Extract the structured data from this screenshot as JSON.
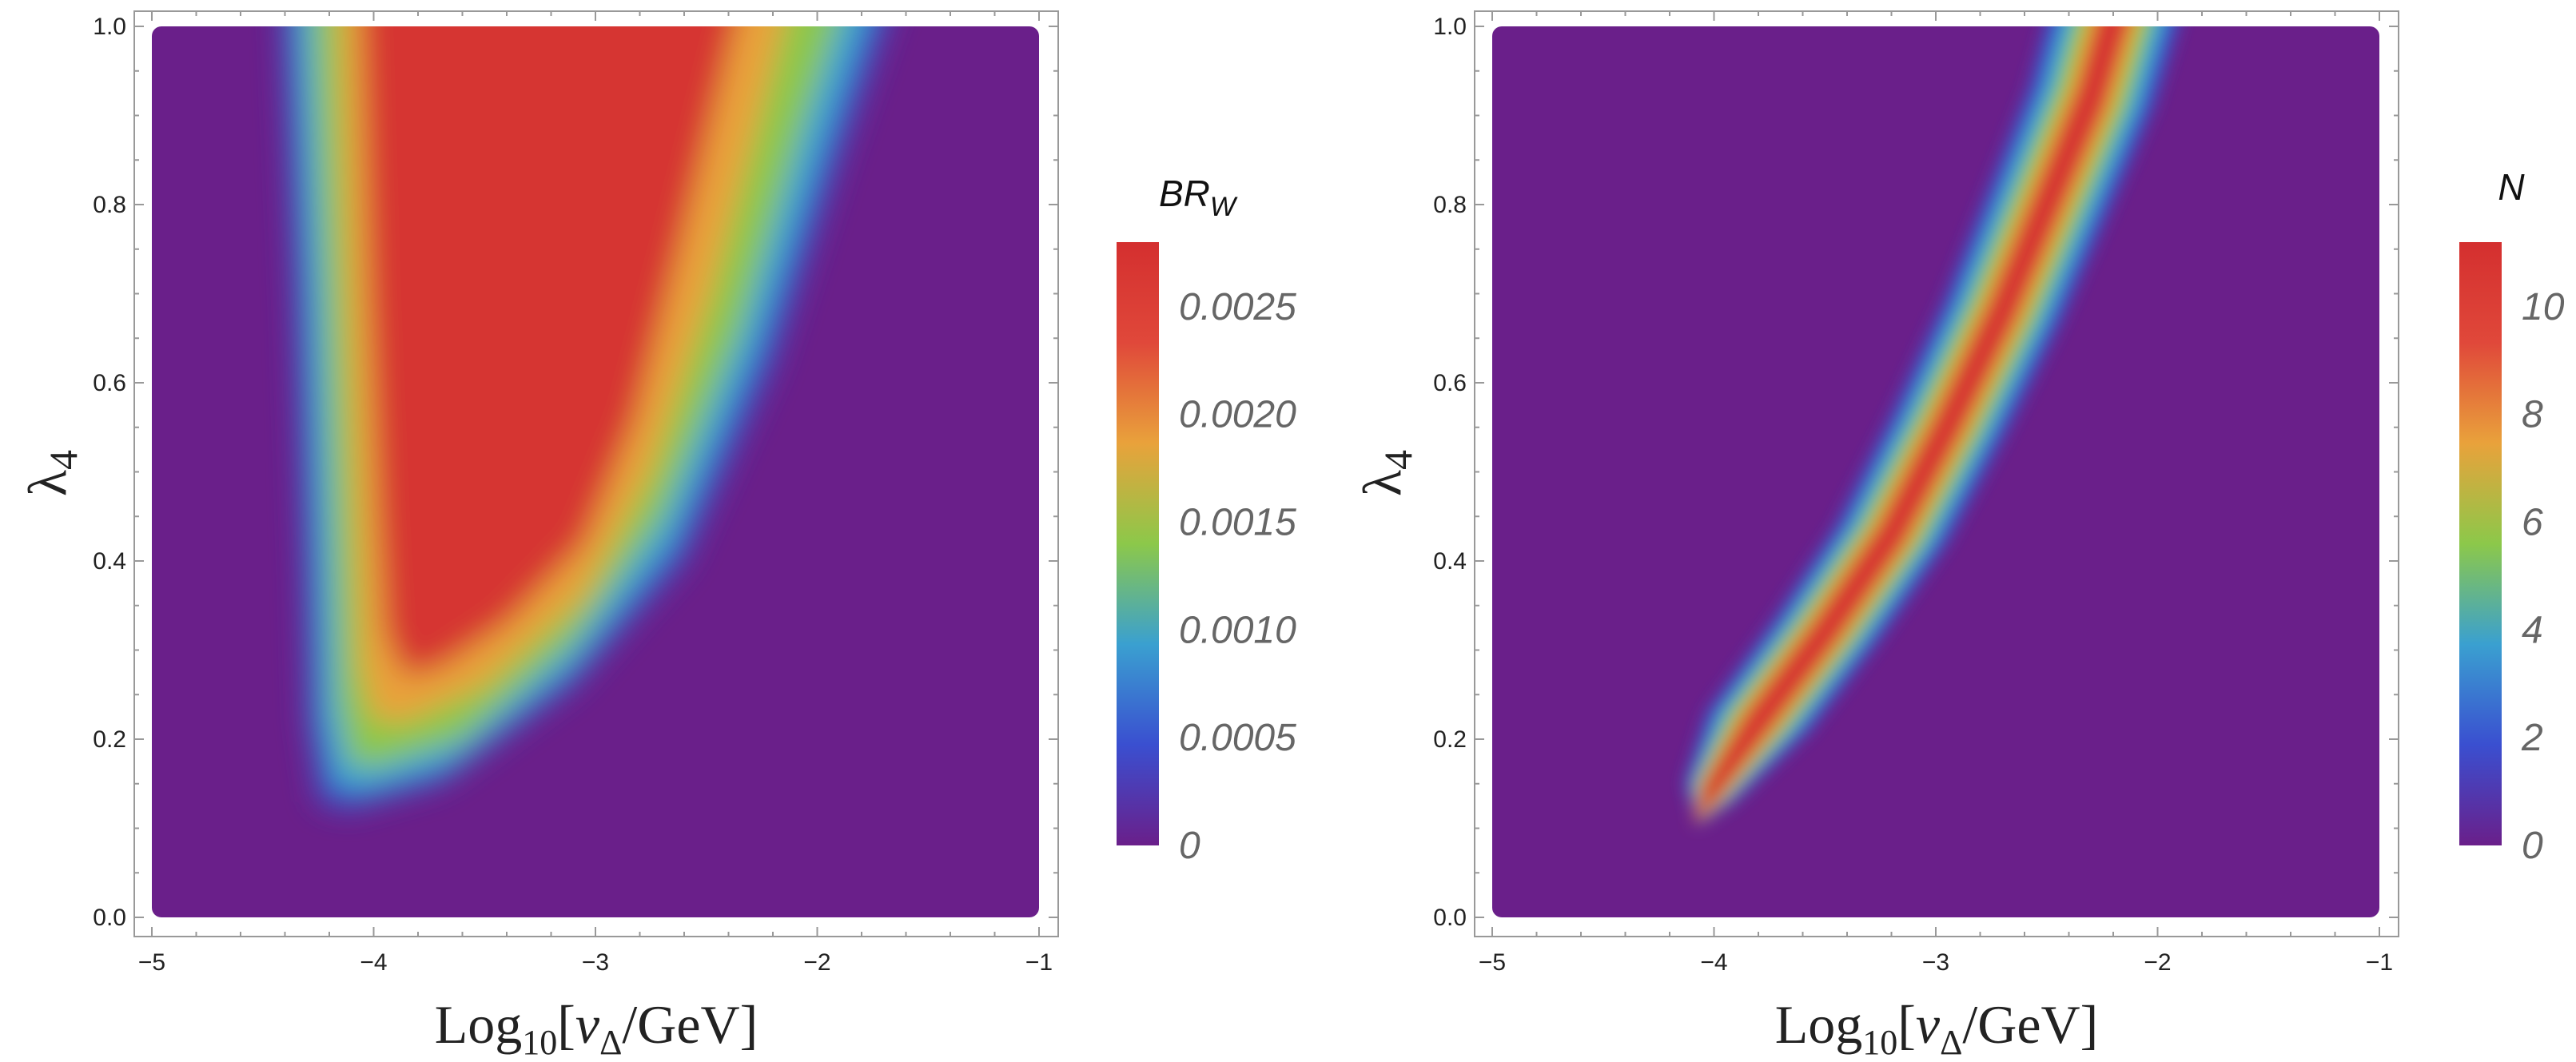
{
  "chart_data": [
    {
      "type": "heatmap",
      "title": "",
      "xlabel_main": "Log",
      "xlabel_sub": "10",
      "xlabel_bracket_open": "[",
      "xlabel_var": "v",
      "xlabel_var_sub": "Δ",
      "xlabel_unit": "/GeV]",
      "ylabel_main": "λ",
      "ylabel_sub": "4",
      "xlim": [
        -5.0,
        -1.0
      ],
      "ylim": [
        0.0,
        1.0
      ],
      "x_ticks": [
        "−5",
        "−4",
        "−3",
        "−2",
        "−1"
      ],
      "y_ticks": [
        "0.0",
        "0.2",
        "0.4",
        "0.6",
        "0.8",
        "1.0"
      ],
      "colorbar": {
        "title_main": "BR",
        "title_sub": "W",
        "range": [
          0.0,
          0.0028
        ],
        "ticks": [
          "0",
          "0.0005",
          "0.0010",
          "0.0015",
          "0.0020",
          "0.0025"
        ],
        "tick_values": [
          0.0,
          0.0005,
          0.001,
          0.0015,
          0.002,
          0.0025
        ],
        "colormap": [
          "#6a1f8a",
          "#3a4fd0",
          "#3aa0d0",
          "#8cc84a",
          "#e9a23b",
          "#e0483a",
          "#d42f2f"
        ]
      },
      "region": "broad band: high values for x between about -4.2 and -2.3 at large λ4, narrowing to x ≈ -4.1 near λ4 ≈ 0.15; near-zero elsewhere"
    },
    {
      "type": "heatmap",
      "title": "",
      "xlabel_main": "Log",
      "xlabel_sub": "10",
      "xlabel_bracket_open": "[",
      "xlabel_var": "v",
      "xlabel_var_sub": "Δ",
      "xlabel_unit": "/GeV]",
      "ylabel_main": "λ",
      "ylabel_sub": "4",
      "xlim": [
        -5.0,
        -1.0
      ],
      "ylim": [
        0.0,
        1.0
      ],
      "x_ticks": [
        "−5",
        "−4",
        "−3",
        "−2",
        "−1"
      ],
      "y_ticks": [
        "0.0",
        "0.2",
        "0.4",
        "0.6",
        "0.8",
        "1.0"
      ],
      "colorbar": {
        "title_main": "N",
        "title_sub": "",
        "range": [
          0,
          11.2
        ],
        "ticks": [
          "0",
          "2",
          "4",
          "6",
          "8",
          "10"
        ],
        "tick_values": [
          0,
          2,
          4,
          6,
          8,
          10
        ],
        "colormap": [
          "#6a1f8a",
          "#3a4fd0",
          "#3aa0d0",
          "#8cc84a",
          "#e9a23b",
          "#e0483a",
          "#d42f2f"
        ]
      },
      "region": "narrow band along a curve from (x≈-4.0, λ4≈0.16) to (x≈-2.1, λ4≈1.0); near-zero elsewhere"
    }
  ]
}
